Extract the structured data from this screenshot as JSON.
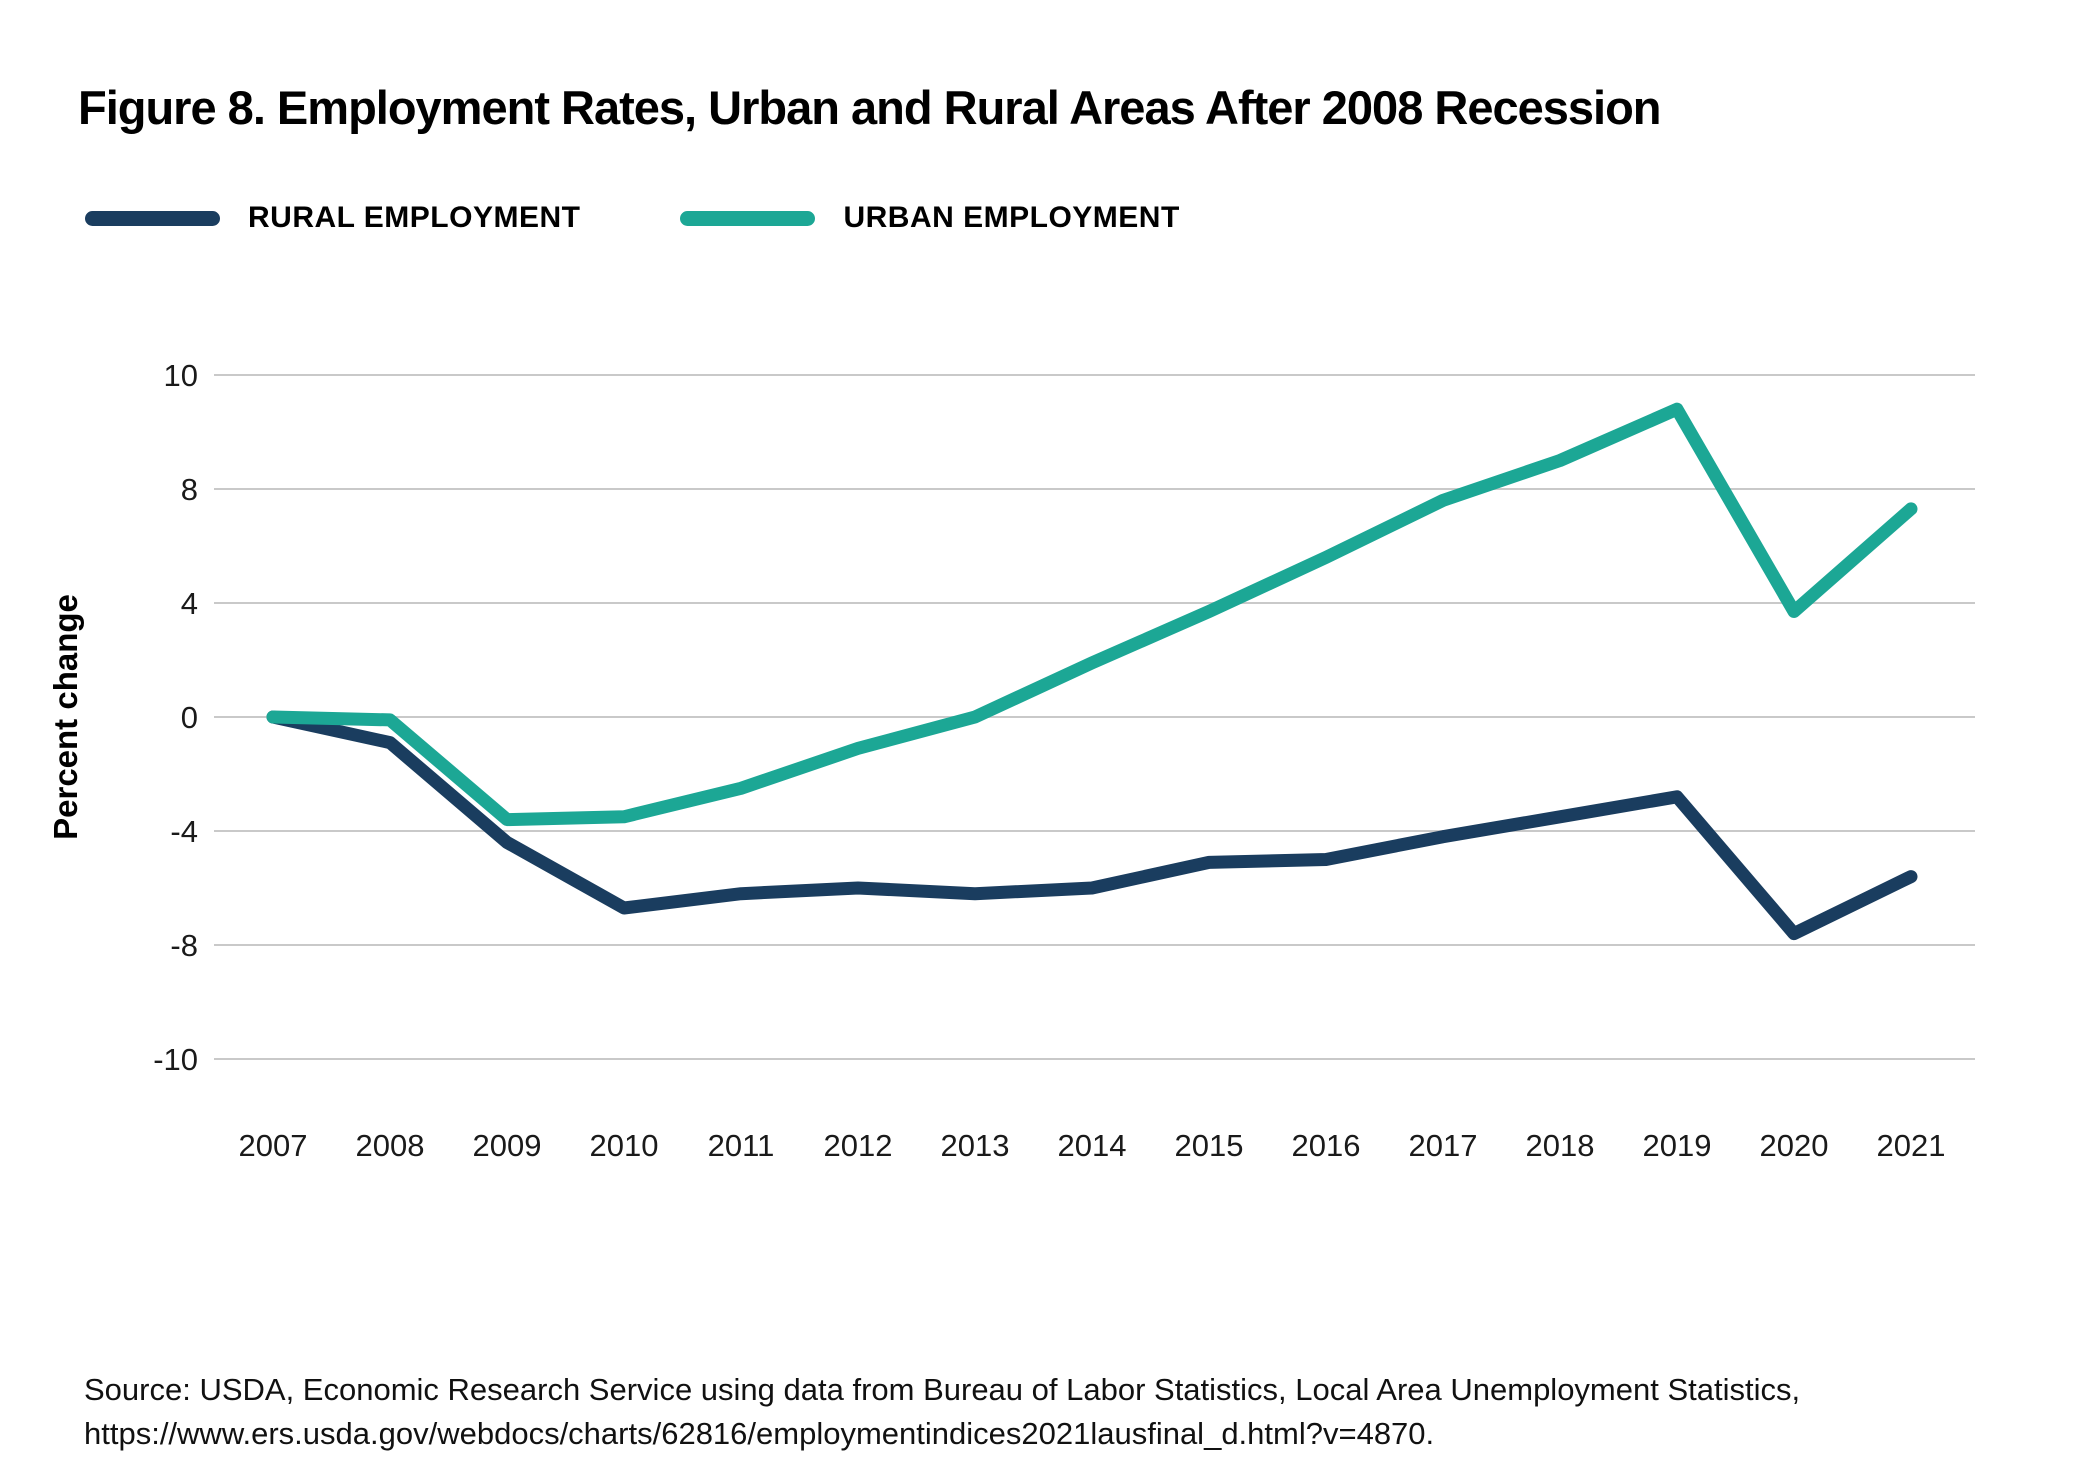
{
  "chart_data": {
    "type": "line",
    "title": "Figure 8. Employment Rates, Urban and Rural Areas After 2008 Recession",
    "ylabel": "Percent change",
    "xlabel": "",
    "grid": true,
    "legend_position": "top-left",
    "y_ticks": [
      10,
      8,
      4,
      0,
      -4,
      -8,
      -10
    ],
    "categories": [
      2007,
      2008,
      2009,
      2010,
      2011,
      2012,
      2013,
      2014,
      2015,
      2016,
      2017,
      2018,
      2019,
      2020,
      2021
    ],
    "series": [
      {
        "name": "RURAL EMPLOYMENT",
        "color": "#1a3d5f",
        "values": [
          0,
          -0.9,
          -4.4,
          -6.7,
          -6.2,
          -6.0,
          -6.2,
          -6.0,
          -5.1,
          -5.0,
          -4.2,
          -3.5,
          -2.8,
          -7.6,
          -5.6
        ]
      },
      {
        "name": "URBAN EMPLOYMENT",
        "color": "#1ca795",
        "values": [
          0,
          -0.1,
          -3.6,
          -3.5,
          -2.5,
          -1.1,
          0.0,
          1.9,
          3.7,
          5.6,
          7.6,
          8.5,
          9.4,
          3.7,
          7.3
        ]
      }
    ],
    "gridline_color": "#c9c9c9"
  },
  "source": {
    "line1": "Source: USDA, Economic Research Service using data from Bureau of Labor Statistics, Local Area Unemployment Statistics,",
    "line2": "https://www.ers.usda.gov/webdocs/charts/62816/employmentindices2021lausfinal_d.html?v=4870."
  }
}
